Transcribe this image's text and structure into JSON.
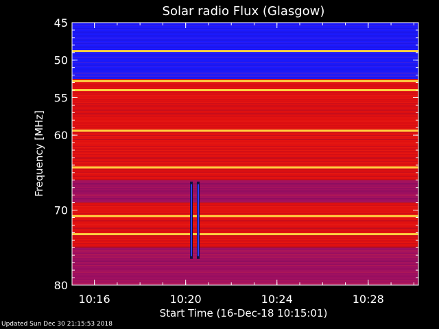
{
  "footer": "Updated Sun Dec 30 21:15:53 2018",
  "chart_data": {
    "type": "heatmap",
    "title": "Solar radio Flux (Glasgow)",
    "xlabel": "Start Time (16-Dec-18 10:15:01)",
    "ylabel": "Frequency [MHz]",
    "x_range_minutes": [
      10.25,
      10.5
    ],
    "x_ticks": [
      "10:16",
      "10:20",
      "10:24",
      "10:28"
    ],
    "x_tick_values_min": [
      16,
      20,
      24,
      28
    ],
    "x_axis_start_min": 15.02,
    "x_axis_end_min": 30.2,
    "y_range_mhz": [
      45,
      80
    ],
    "y_ticks": [
      "45",
      "50",
      "55",
      "60",
      "70",
      "80"
    ],
    "y_tick_values": [
      45,
      50,
      55,
      60,
      70,
      80
    ],
    "y_axis_inverted": true,
    "background_level_by_band": [
      {
        "from_mhz": 45,
        "to_mhz": 52.5,
        "level": "low",
        "color": "#1a1aff"
      },
      {
        "from_mhz": 52.5,
        "to_mhz": 66,
        "level": "high",
        "color": "#e01010"
      },
      {
        "from_mhz": 66,
        "to_mhz": 69,
        "level": "medium",
        "color": "#a01060"
      },
      {
        "from_mhz": 69,
        "to_mhz": 75,
        "level": "high",
        "color": "#e01010"
      },
      {
        "from_mhz": 75,
        "to_mhz": 80,
        "level": "medium",
        "color": "#a01060"
      }
    ],
    "rfi_lines_mhz": [
      48.8,
      52.8,
      54.0,
      59.4,
      64.3,
      70.8,
      73.2
    ],
    "bursts": [
      {
        "time_min": 20.25,
        "from_mhz": 66.2,
        "to_mhz": 76.5
      },
      {
        "time_min": 20.55,
        "from_mhz": 66.2,
        "to_mhz": 76.5
      }
    ],
    "colors": {
      "low": "#0000ff",
      "medium": "#8b1070",
      "high": "#e31a10",
      "line": "#ffd040"
    }
  }
}
